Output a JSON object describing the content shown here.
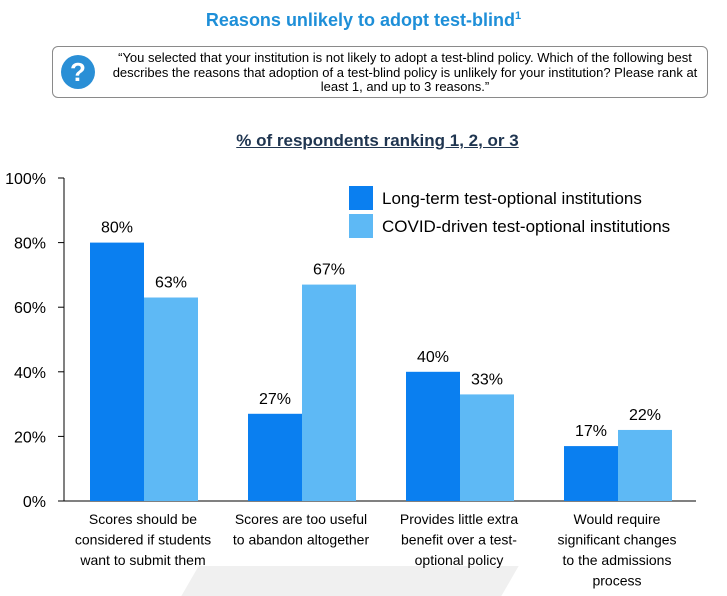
{
  "header": {
    "title": "Reasons unlikely to adopt test-blind",
    "title_sup": "1",
    "question_icon": "question-mark-icon",
    "question": "“You selected that your institution is not likely to adopt a test-blind policy. Which of the following best describes the reasons that adoption of a test-blind policy is unlikely for your institution? Please rank at least 1, and up to 3 reasons.”",
    "subtitle": "% of respondents ranking 1, 2, or 3"
  },
  "chart_data": {
    "type": "bar",
    "categories": [
      [
        "Scores should be",
        "considered if students",
        "want to submit them"
      ],
      [
        "Scores are too useful",
        "to abandon altogether"
      ],
      [
        "Provides little extra",
        "benefit over a test-",
        "optional policy"
      ],
      [
        "Would require",
        "significant changes",
        "to the admissions",
        "process"
      ]
    ],
    "series": [
      {
        "name": "Long-term test-optional institutions",
        "values": [
          80,
          27,
          40,
          17
        ],
        "labels": [
          "80%",
          "27%",
          "40%",
          "17%"
        ],
        "color": "#0a7ff0"
      },
      {
        "name": "COVID-driven test-optional institutions",
        "values": [
          63,
          67,
          33,
          22
        ],
        "labels": [
          "63%",
          "67%",
          "33%",
          "22%"
        ],
        "color": "#5eb9f5"
      }
    ],
    "ylim": [
      0,
      100
    ],
    "yticks": [
      0,
      20,
      40,
      60,
      80,
      100
    ],
    "ytick_labels": [
      "0%",
      "20%",
      "40%",
      "60%",
      "80%",
      "100%"
    ],
    "legend_position": "top-right",
    "grid": false
  }
}
